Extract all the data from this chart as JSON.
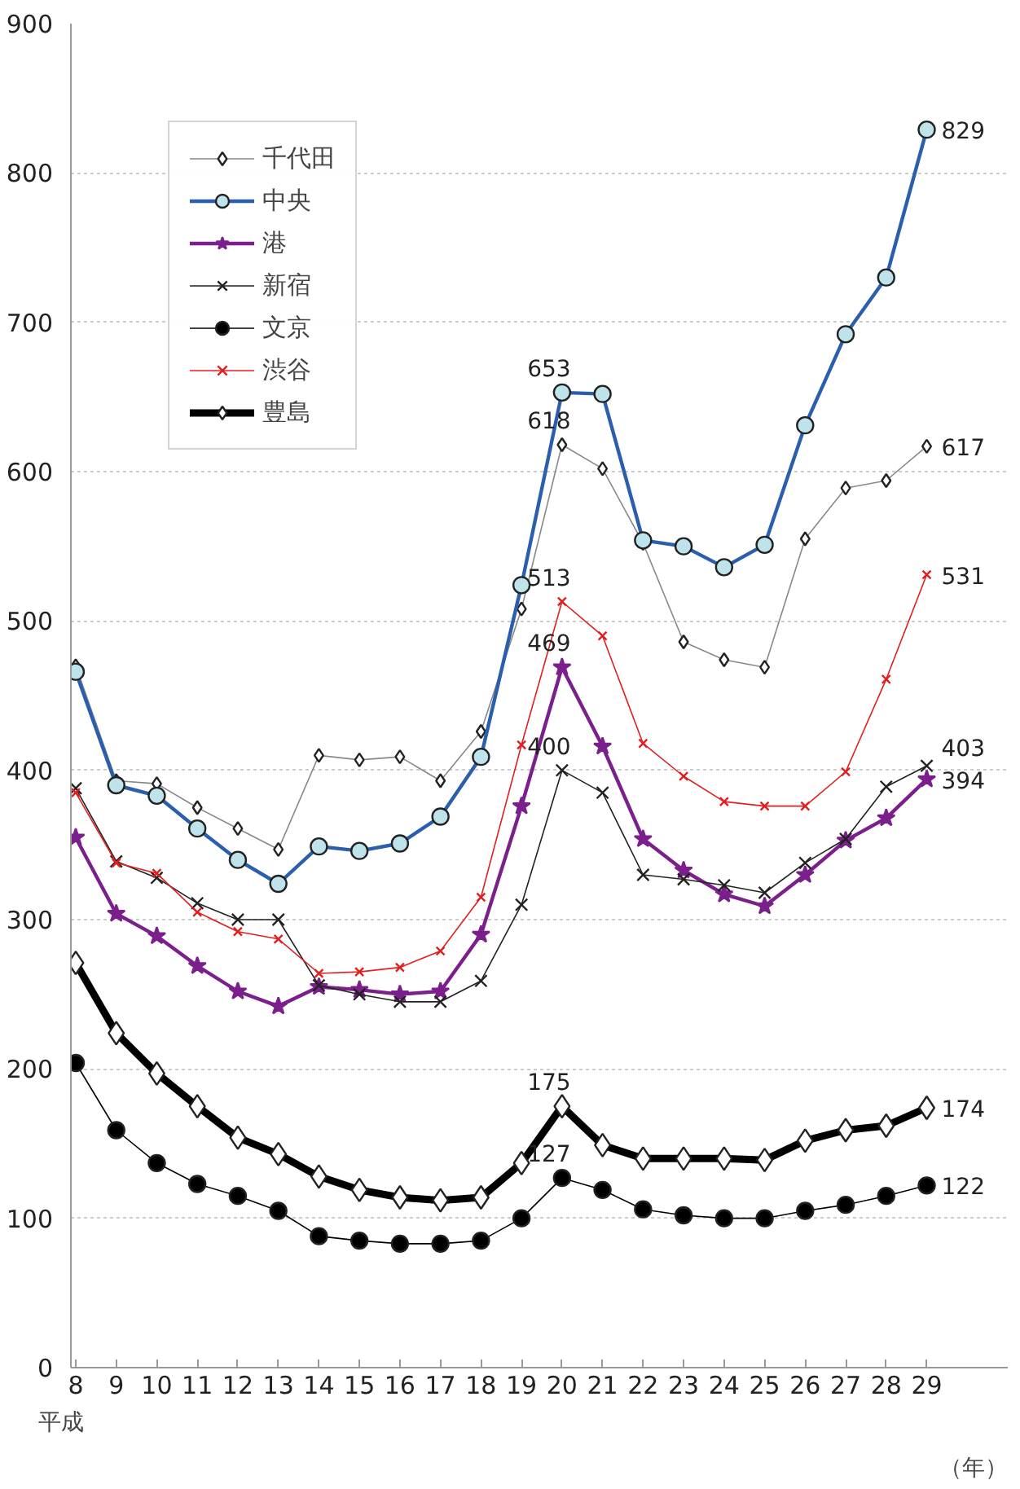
{
  "chart_data": {
    "type": "line",
    "categories": [
      "8",
      "9",
      "10",
      "11",
      "12",
      "13",
      "14",
      "15",
      "16",
      "17",
      "18",
      "19",
      "20",
      "21",
      "22",
      "23",
      "24",
      "25",
      "26",
      "27",
      "28",
      "29"
    ],
    "series": [
      {
        "name": "千代田",
        "color": "#888888",
        "marker": "diamond",
        "values": [
          470,
          393,
          391,
          375,
          361,
          347,
          410,
          407,
          409,
          393,
          426,
          508,
          618,
          602,
          552,
          486,
          474,
          469,
          555,
          589,
          594,
          617
        ],
        "value_labels": [
          null,
          null,
          null,
          null,
          null,
          null,
          null,
          null,
          null,
          null,
          null,
          null,
          "618",
          null,
          null,
          null,
          null,
          null,
          null,
          null,
          null,
          "617"
        ]
      },
      {
        "name": "中央",
        "color": "#2b5fad",
        "marker": "circle",
        "values": [
          466,
          390,
          383,
          361,
          340,
          324,
          349,
          346,
          351,
          369,
          409,
          524,
          653,
          652,
          554,
          550,
          536,
          551,
          631,
          692,
          730,
          829
        ],
        "value_labels": [
          null,
          null,
          null,
          null,
          null,
          null,
          null,
          null,
          null,
          null,
          null,
          null,
          "653",
          null,
          null,
          null,
          null,
          null,
          null,
          null,
          null,
          "829"
        ]
      },
      {
        "name": "港",
        "color": "#7b1f8c",
        "marker": "star",
        "values": [
          355,
          304,
          289,
          269,
          252,
          242,
          255,
          253,
          250,
          252,
          290,
          376,
          469,
          416,
          354,
          333,
          317,
          309,
          330,
          353,
          368,
          394
        ],
        "value_labels": [
          null,
          null,
          null,
          null,
          null,
          null,
          null,
          null,
          null,
          null,
          null,
          null,
          "469",
          null,
          null,
          null,
          null,
          null,
          null,
          null,
          null,
          "394"
        ]
      },
      {
        "name": "新宿",
        "color": "#222222",
        "marker": "cross",
        "values": [
          388,
          339,
          328,
          311,
          300,
          300,
          256,
          250,
          245,
          245,
          259,
          310,
          400,
          385,
          330,
          327,
          323,
          318,
          338,
          354,
          389,
          403
        ],
        "value_labels": [
          null,
          null,
          null,
          null,
          null,
          null,
          null,
          null,
          null,
          null,
          null,
          null,
          "400",
          null,
          null,
          null,
          null,
          null,
          null,
          null,
          null,
          "403"
        ]
      },
      {
        "name": "文京",
        "color": "#000000",
        "marker": "circle",
        "values": [
          204,
          159,
          137,
          123,
          115,
          105,
          88,
          85,
          83,
          83,
          85,
          100,
          127,
          119,
          106,
          102,
          100,
          100,
          105,
          109,
          115,
          122
        ],
        "value_labels": [
          null,
          null,
          null,
          null,
          null,
          null,
          null,
          null,
          null,
          null,
          null,
          null,
          "127",
          null,
          null,
          null,
          null,
          null,
          null,
          null,
          null,
          "122"
        ]
      },
      {
        "name": "渋谷",
        "color": "#e02020",
        "marker": "cross",
        "values": [
          385,
          338,
          331,
          305,
          292,
          287,
          264,
          265,
          268,
          279,
          315,
          417,
          513,
          490,
          418,
          396,
          379,
          376,
          376,
          399,
          461,
          531
        ],
        "value_labels": [
          null,
          null,
          null,
          null,
          null,
          null,
          null,
          null,
          null,
          null,
          null,
          null,
          "513",
          null,
          null,
          null,
          null,
          null,
          null,
          null,
          null,
          "531"
        ]
      },
      {
        "name": "豊島",
        "color": "#000000",
        "marker": "diamond",
        "values": [
          271,
          224,
          197,
          175,
          154,
          143,
          128,
          119,
          114,
          112,
          114,
          137,
          175,
          149,
          140,
          140,
          140,
          139,
          152,
          159,
          162,
          174
        ],
        "value_labels": [
          null,
          null,
          null,
          null,
          null,
          null,
          null,
          null,
          null,
          null,
          null,
          null,
          "175",
          null,
          null,
          null,
          null,
          null,
          null,
          null,
          null,
          "174"
        ]
      }
    ],
    "ylim": [
      0,
      900
    ],
    "yticks": [
      0,
      100,
      200,
      300,
      400,
      500,
      600,
      700,
      800,
      900
    ],
    "grid": "y",
    "legend": "top left",
    "annotations": [
      "平成",
      "（年）"
    ]
  }
}
